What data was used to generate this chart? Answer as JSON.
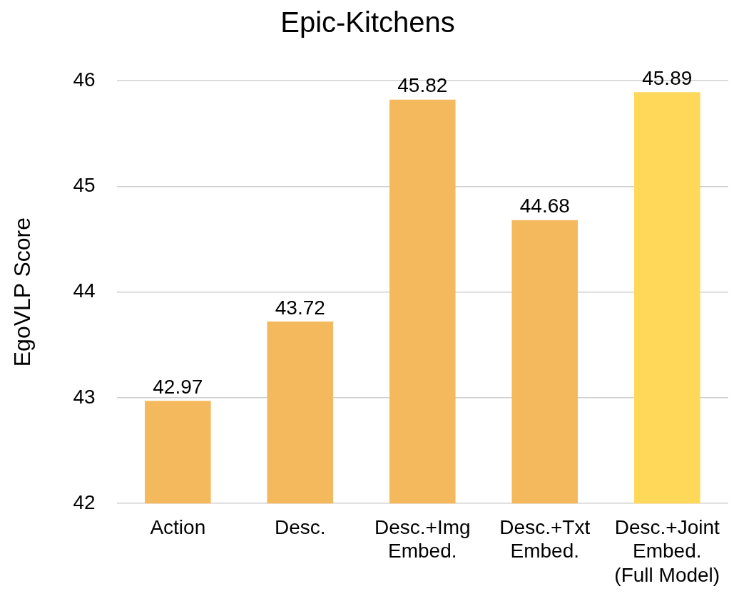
{
  "chart_data": {
    "type": "bar",
    "title": "Epic-Kitchens",
    "ylabel": "EgoVLP Score",
    "categories": [
      "Action",
      "Desc.",
      "Desc.+Img\nEmbed.",
      "Desc.+Txt\nEmbed.",
      "Desc.+Joint\nEmbed.\n(Full Model)"
    ],
    "values": [
      42.97,
      43.72,
      45.82,
      44.68,
      45.89
    ],
    "colors": [
      "#f5b95d",
      "#f5b95d",
      "#f5b95d",
      "#f5b95d",
      "#ffd85a"
    ],
    "ylim": [
      42,
      46
    ],
    "yticks": [
      42,
      43,
      44,
      45,
      46
    ],
    "grid": "y",
    "data_labels": true
  }
}
